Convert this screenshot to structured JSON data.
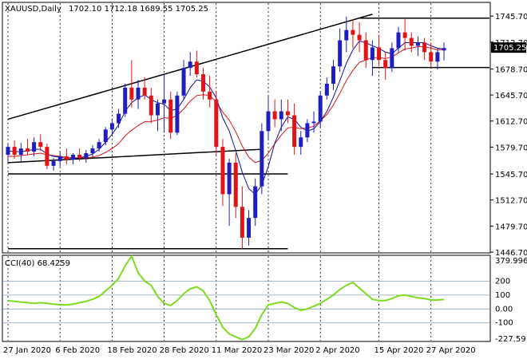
{
  "chart_data": [
    {
      "type": "candlestick",
      "symbol_label": "XAUUSD,Daily",
      "ohlc_readout": "1702.10 1712.18 1689.55 1705.25",
      "current_price": "1705.25",
      "ylim": [
        1446.7,
        1762
      ],
      "y_ticks": [
        "1745.70",
        "1712.70",
        "1678.70",
        "1645.70",
        "1612.70",
        "1579.70",
        "1545.70",
        "1512.70",
        "1479.70",
        "1446.70"
      ],
      "x_ticks": [
        {
          "label": "27 Jan 2020",
          "index": 0
        },
        {
          "label": "6 Feb 2020",
          "index": 8
        },
        {
          "label": "18 Feb 2020",
          "index": 16
        },
        {
          "label": "28 Feb 2020",
          "index": 24
        },
        {
          "label": "11 Mar 2020",
          "index": 32
        },
        {
          "label": "23 Mar 2020",
          "index": 40
        },
        {
          "label": "2 Apr 2020",
          "index": 48
        },
        {
          "label": "15 Apr 2020",
          "index": 57
        },
        {
          "label": "27 Apr 2020",
          "index": 65
        }
      ],
      "grid": "vertical-dotted",
      "colors": {
        "up": "#1f1fbf",
        "down": "#e01414",
        "fast_ma": "#1010a0",
        "slow_ma": "#e01414"
      },
      "candles": [
        [
          1570,
          1585,
          1560,
          1580
        ],
        [
          1580,
          1588,
          1565,
          1570
        ],
        [
          1570,
          1585,
          1562,
          1578
        ],
        [
          1578,
          1590,
          1570,
          1574
        ],
        [
          1574,
          1592,
          1568,
          1586
        ],
        [
          1586,
          1596,
          1575,
          1580
        ],
        [
          1580,
          1584,
          1552,
          1556
        ],
        [
          1556,
          1566,
          1550,
          1562
        ],
        [
          1562,
          1574,
          1555,
          1568
        ],
        [
          1568,
          1578,
          1558,
          1564
        ],
        [
          1564,
          1572,
          1558,
          1570
        ],
        [
          1570,
          1578,
          1562,
          1566
        ],
        [
          1566,
          1576,
          1560,
          1572
        ],
        [
          1572,
          1582,
          1566,
          1578
        ],
        [
          1578,
          1590,
          1574,
          1586
        ],
        [
          1586,
          1605,
          1582,
          1602
        ],
        [
          1602,
          1616,
          1596,
          1610
        ],
        [
          1610,
          1628,
          1604,
          1622
        ],
        [
          1622,
          1660,
          1618,
          1655
        ],
        [
          1655,
          1690,
          1630,
          1640
        ],
        [
          1640,
          1665,
          1628,
          1655
        ],
        [
          1655,
          1668,
          1640,
          1645
        ],
        [
          1645,
          1655,
          1610,
          1620
        ],
        [
          1620,
          1640,
          1600,
          1635
        ],
        [
          1635,
          1672,
          1598,
          1640
        ],
        [
          1640,
          1650,
          1590,
          1598
        ],
        [
          1598,
          1650,
          1595,
          1645
        ],
        [
          1645,
          1690,
          1640,
          1680
        ],
        [
          1680,
          1700,
          1670,
          1688
        ],
        [
          1688,
          1702,
          1668,
          1672
        ],
        [
          1672,
          1680,
          1640,
          1650
        ],
        [
          1650,
          1670,
          1630,
          1640
        ],
        [
          1640,
          1650,
          1570,
          1580
        ],
        [
          1580,
          1590,
          1505,
          1520
        ],
        [
          1520,
          1565,
          1480,
          1560
        ],
        [
          1560,
          1572,
          1490,
          1504
        ],
        [
          1504,
          1530,
          1451,
          1465
        ],
        [
          1465,
          1500,
          1455,
          1490
        ],
        [
          1490,
          1540,
          1480,
          1530
        ],
        [
          1530,
          1610,
          1520,
          1600
        ],
        [
          1600,
          1645,
          1590,
          1625
        ],
        [
          1625,
          1640,
          1605,
          1615
        ],
        [
          1615,
          1640,
          1600,
          1625
        ],
        [
          1625,
          1640,
          1610,
          1620
        ],
        [
          1620,
          1635,
          1570,
          1580
        ],
        [
          1580,
          1600,
          1570,
          1592
        ],
        [
          1592,
          1615,
          1586,
          1610
        ],
        [
          1610,
          1625,
          1598,
          1612
        ],
        [
          1612,
          1650,
          1605,
          1645
        ],
        [
          1645,
          1668,
          1640,
          1660
        ],
        [
          1660,
          1690,
          1652,
          1682
        ],
        [
          1682,
          1730,
          1675,
          1715
        ],
        [
          1715,
          1745,
          1700,
          1728
        ],
        [
          1728,
          1742,
          1705,
          1722
        ],
        [
          1722,
          1738,
          1700,
          1715
        ],
        [
          1715,
          1725,
          1680,
          1690
        ],
        [
          1690,
          1715,
          1670,
          1706
        ],
        [
          1706,
          1722,
          1682,
          1690
        ],
        [
          1690,
          1700,
          1665,
          1680
        ],
        [
          1680,
          1712,
          1675,
          1705
        ],
        [
          1705,
          1732,
          1700,
          1725
        ],
        [
          1725,
          1742,
          1702,
          1718
        ],
        [
          1718,
          1725,
          1700,
          1708
        ],
        [
          1708,
          1720,
          1695,
          1712
        ],
        [
          1712,
          1718,
          1690,
          1700
        ],
        [
          1700,
          1712,
          1680,
          1688
        ],
        [
          1688,
          1705,
          1678,
          1700
        ],
        [
          1702.1,
          1712.18,
          1689.55,
          1705.25
        ]
      ],
      "ma_fast": [
        1575,
        1574,
        1574,
        1575,
        1577,
        1577,
        1571,
        1568,
        1567,
        1565,
        1565,
        1566,
        1568,
        1571,
        1577,
        1586,
        1596,
        1608,
        1625,
        1636,
        1642,
        1646,
        1640,
        1636,
        1634,
        1626,
        1628,
        1640,
        1655,
        1665,
        1663,
        1656,
        1642,
        1617,
        1600,
        1575,
        1548,
        1527,
        1520,
        1532,
        1555,
        1585,
        1605,
        1618,
        1615,
        1605,
        1600,
        1603,
        1612,
        1625,
        1643,
        1664,
        1686,
        1703,
        1714,
        1712,
        1708,
        1705,
        1700,
        1698,
        1705,
        1712,
        1712,
        1712,
        1712,
        1708,
        1705,
        1704
      ],
      "ma_slow": [
        1568,
        1568,
        1569,
        1570,
        1571,
        1572,
        1570,
        1569,
        1568,
        1567,
        1566,
        1566,
        1566,
        1567,
        1569,
        1573,
        1578,
        1584,
        1594,
        1601,
        1607,
        1612,
        1612,
        1614,
        1617,
        1616,
        1620,
        1628,
        1638,
        1645,
        1646,
        1645,
        1637,
        1624,
        1614,
        1599,
        1581,
        1567,
        1560,
        1563,
        1572,
        1584,
        1595,
        1604,
        1605,
        1603,
        1604,
        1606,
        1613,
        1621,
        1633,
        1648,
        1664,
        1677,
        1687,
        1690,
        1693,
        1693,
        1692,
        1694,
        1699,
        1704,
        1705,
        1707,
        1707,
        1705,
        1703,
        1703
      ],
      "levels": [
        1743,
        1680.5,
        1545.7,
        1451
      ],
      "trendlines": [
        {
          "from": [
            0,
            1615
          ],
          "to": [
            56,
            1748
          ]
        },
        {
          "from": [
            0,
            1560
          ],
          "to": [
            39,
            1577
          ]
        }
      ]
    },
    {
      "type": "line",
      "indicator_label": "CCI(40) 68.4259",
      "ylim": [
        -227.591,
        379.9967
      ],
      "y_ticks": [
        "379.9967",
        "200",
        "100",
        "0.00",
        "-100",
        "-227.591"
      ],
      "levels": [
        200,
        100,
        0,
        -100
      ],
      "color": "#7ddc1f",
      "values": [
        60,
        55,
        50,
        45,
        40,
        45,
        40,
        35,
        30,
        30,
        35,
        45,
        55,
        70,
        90,
        130,
        170,
        220,
        310,
        380,
        260,
        200,
        170,
        90,
        40,
        25,
        60,
        110,
        145,
        160,
        130,
        60,
        -40,
        -130,
        -180,
        -200,
        -220,
        -200,
        -140,
        -40,
        30,
        40,
        50,
        40,
        10,
        -10,
        0,
        20,
        40,
        70,
        100,
        140,
        170,
        190,
        150,
        110,
        70,
        60,
        60,
        75,
        95,
        100,
        90,
        80,
        75,
        65,
        65,
        68.4259
      ]
    }
  ]
}
